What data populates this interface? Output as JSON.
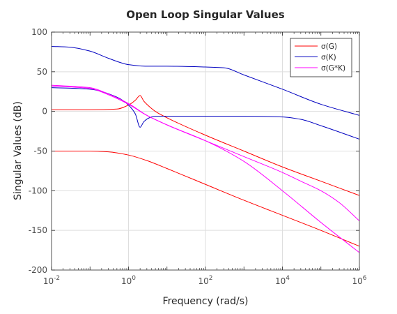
{
  "chart_data": {
    "type": "line",
    "title": "Open Loop Singular Values",
    "xlabel": "Frequency (rad/s)",
    "ylabel": "Singular Values (dB)",
    "xscale": "log",
    "xlim": [
      0.01,
      1000000
    ],
    "ylim": [
      -200,
      100
    ],
    "grid": true,
    "legend_position": "top-right",
    "x_tick_labels": [
      "10-2",
      "100",
      "102",
      "104",
      "106"
    ],
    "y_ticks": [
      100,
      50,
      0,
      -50,
      -100,
      -150,
      -200
    ],
    "y_tick_labels": [
      "100",
      "50",
      "0",
      "-50",
      "-100",
      "-150",
      "-200"
    ],
    "series": [
      {
        "name": "σ(G)",
        "color": "#ff0000",
        "curves": [
          {
            "x": [
              0.01,
              0.1,
              0.5,
              1,
              1.5,
              2,
              2.5,
              3.5,
              5,
              10,
              100,
              1000,
              10000,
              100000,
              1000000
            ],
            "y": [
              2,
              2,
              3,
              8,
              14,
              20,
              13,
              6,
              0,
              -8,
              -30,
              -50,
              -70,
              -88,
              -106
            ]
          },
          {
            "x": [
              0.01,
              0.1,
              0.3,
              1,
              3,
              10,
              100,
              1000,
              10000,
              100000,
              1000000
            ],
            "y": [
              -50,
              -50,
              -51,
              -55,
              -62,
              -72,
              -92,
              -112,
              -131,
              -150,
              -170
            ]
          }
        ]
      },
      {
        "name": "σ(K)",
        "color": "#0000c0",
        "curves": [
          {
            "x": [
              0.01,
              0.03,
              0.1,
              0.3,
              1,
              3,
              10,
              100,
              300,
              1000,
              10000,
              100000,
              1000000
            ],
            "y": [
              82,
              81,
              76,
              67,
              59,
              57,
              57,
              56,
              55,
              46,
              28,
              9,
              -5
            ]
          },
          {
            "x": [
              0.01,
              0.1,
              0.5,
              1,
              1.5,
              2,
              2.5,
              3.5,
              5,
              10,
              100,
              1000,
              10000,
              30000,
              100000,
              1000000
            ],
            "y": [
              30,
              28,
              18,
              8,
              -3,
              -20,
              -13,
              -8,
              -6,
              -6,
              -6,
              -6,
              -7,
              -10,
              -18,
              -35
            ]
          }
        ]
      },
      {
        "name": "σ(G*K)",
        "color": "#ff00ff",
        "curves": [
          {
            "x": [
              0.01,
              0.1,
              0.3,
              1,
              3,
              10,
              100,
              1000,
              10000,
              30000,
              100000,
              300000,
              1000000
            ],
            "y": [
              33,
              30,
              22,
              10,
              -5,
              -17,
              -37,
              -57,
              -77,
              -88,
              -100,
              -115,
              -138
            ]
          },
          {
            "x": [
              0.01,
              0.1,
              0.3,
              1,
              3,
              10,
              100,
              1000,
              10000,
              100000,
              1000000
            ],
            "y": [
              32,
              29,
              21,
              9,
              -5,
              -17,
              -37,
              -63,
              -100,
              -140,
              -178
            ]
          }
        ]
      }
    ]
  }
}
